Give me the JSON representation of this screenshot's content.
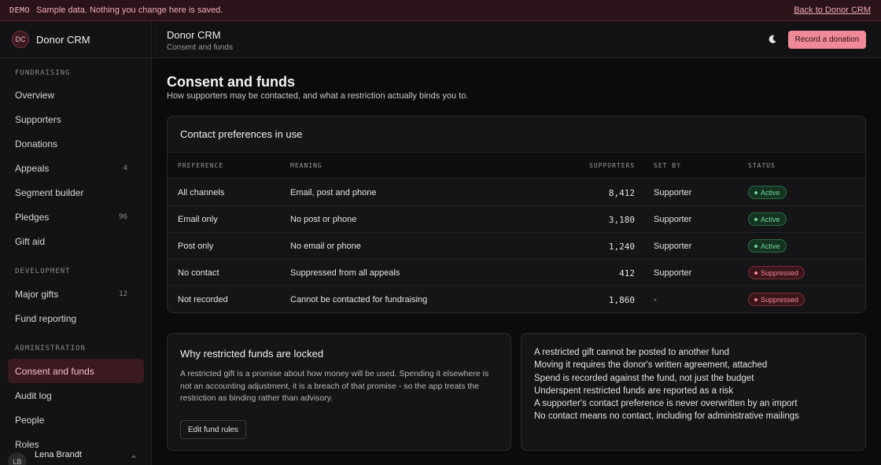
{
  "demo": {
    "tag": "DEMO",
    "text": "Sample data. Nothing you change here is saved.",
    "back_link": "Back to Donor CRM"
  },
  "brand": {
    "initials": "DC",
    "name": "Donor CRM"
  },
  "sidebar": {
    "sections": [
      {
        "label": "FUNDRAISING",
        "items": [
          {
            "label": "Overview",
            "count": ""
          },
          {
            "label": "Supporters",
            "count": ""
          },
          {
            "label": "Donations",
            "count": ""
          },
          {
            "label": "Appeals",
            "count": "4"
          },
          {
            "label": "Segment builder",
            "count": ""
          },
          {
            "label": "Pledges",
            "count": "96"
          },
          {
            "label": "Gift aid",
            "count": ""
          }
        ]
      },
      {
        "label": "DEVELOPMENT",
        "items": [
          {
            "label": "Major gifts",
            "count": "12"
          },
          {
            "label": "Fund reporting",
            "count": ""
          }
        ]
      },
      {
        "label": "ADMINISTRATION",
        "items": [
          {
            "label": "Consent and funds",
            "count": "",
            "active": true
          },
          {
            "label": "Audit log",
            "count": ""
          },
          {
            "label": "People",
            "count": ""
          },
          {
            "label": "Roles",
            "count": ""
          }
        ]
      }
    ],
    "user": {
      "initials": "LB",
      "name": "Lena Brandt"
    }
  },
  "topbar": {
    "title": "Donor CRM",
    "subtitle": "Consent and funds",
    "theme_icon": "moon-icon",
    "primary_button": "Record a donation"
  },
  "page": {
    "title": "Consent and funds",
    "subtitle": "How supporters may be contacted, and what a restriction actually binds you to."
  },
  "preferences": {
    "title": "Contact preferences in use",
    "columns": [
      "PREFERENCE",
      "MEANING",
      "SUPPORTERS",
      "SET BY",
      "STATUS"
    ],
    "rows": [
      {
        "preference": "All channels",
        "meaning": "Email, post and phone",
        "supporters": "8,412",
        "set_by": "Supporter",
        "status": "Active",
        "tone": "ok"
      },
      {
        "preference": "Email only",
        "meaning": "No post or phone",
        "supporters": "3,180",
        "set_by": "Supporter",
        "status": "Active",
        "tone": "ok"
      },
      {
        "preference": "Post only",
        "meaning": "No email or phone",
        "supporters": "1,240",
        "set_by": "Supporter",
        "status": "Active",
        "tone": "ok"
      },
      {
        "preference": "No contact",
        "meaning": "Suppressed from all appeals",
        "supporters": "412",
        "set_by": "Supporter",
        "status": "Suppressed",
        "tone": "bad"
      },
      {
        "preference": "Not recorded",
        "meaning": "Cannot be contacted for fundraising",
        "supporters": "1,860",
        "set_by": "-",
        "status": "Suppressed",
        "tone": "bad"
      }
    ]
  },
  "why": {
    "title": "Why restricted funds are locked",
    "text": "A restricted gift is a promise about how money will be used. Spending it elsewhere is not an accounting adjustment, it is a breach of that promise - so the app treats the restriction as binding rather than advisory.",
    "button": "Edit fund rules"
  },
  "rules": [
    "A restricted gift cannot be posted to another fund",
    "Moving it requires the donor's written agreement, attached",
    "Spend is recorded against the fund, not just the budget",
    "Underspent restricted funds are reported as a risk",
    "A supporter's contact preference is never overwritten by an import",
    "No contact means no contact, including for administrative mailings"
  ]
}
